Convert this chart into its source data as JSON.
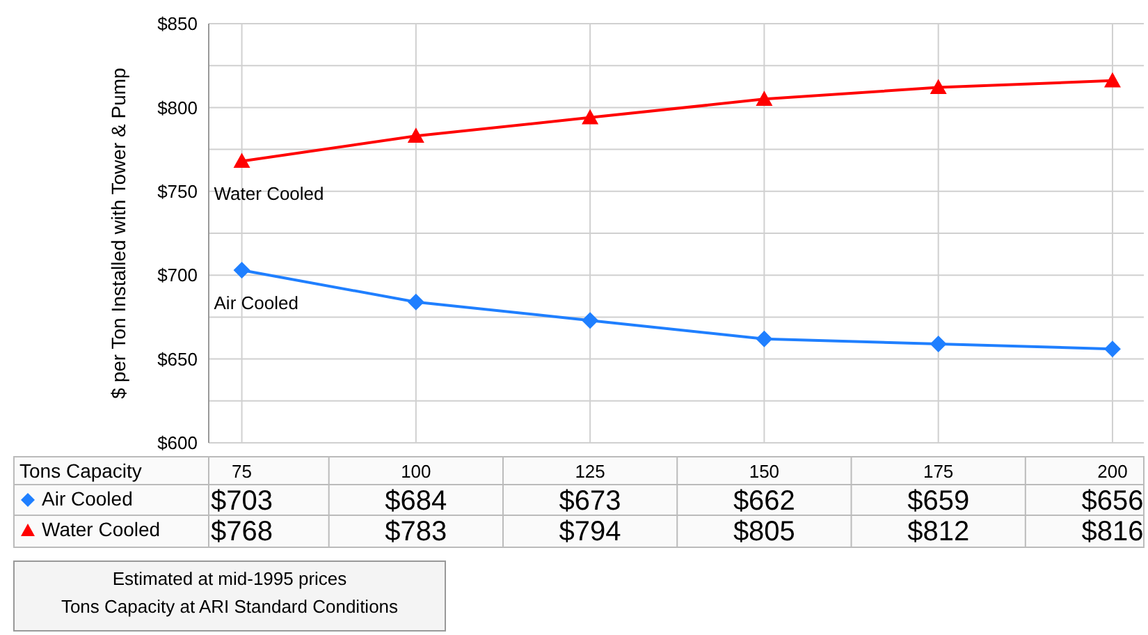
{
  "chart_data": {
    "type": "line",
    "ylabel": "$ per Ton Installed with Tower & Pump",
    "xlabel": "Tons Capacity",
    "categories": [
      "75",
      "100",
      "125",
      "150",
      "175",
      "200"
    ],
    "series": [
      {
        "name": "Air Cooled",
        "color": "#1f7fff",
        "marker": "diamond",
        "values": [
          703,
          684,
          673,
          662,
          659,
          656
        ],
        "value_labels": [
          "$703",
          "$684",
          "$673",
          "$662",
          "$659",
          "$656"
        ]
      },
      {
        "name": "Water Cooled",
        "color": "#ff0000",
        "marker": "triangle",
        "values": [
          768,
          783,
          794,
          805,
          812,
          816
        ],
        "value_labels": [
          "$768",
          "$783",
          "$794",
          "$805",
          "$812",
          "$816"
        ]
      }
    ],
    "ylim": [
      600,
      850
    ],
    "yticks": [
      {
        "value": 600,
        "label": "$600"
      },
      {
        "value": 625,
        "label": null
      },
      {
        "value": 650,
        "label": "$650"
      },
      {
        "value": 675,
        "label": null
      },
      {
        "value": 700,
        "label": "$700"
      },
      {
        "value": 725,
        "label": null
      },
      {
        "value": 750,
        "label": "$750"
      },
      {
        "value": 775,
        "label": null
      },
      {
        "value": 800,
        "label": "$800"
      },
      {
        "value": 825,
        "label": null
      },
      {
        "value": 850,
        "label": "$850"
      }
    ],
    "grid": true,
    "data_labels": true,
    "legend": "bottom",
    "annotations": [
      "Estimated at mid-1995 prices",
      "Tons Capacity at ARI Standard Conditions"
    ]
  }
}
